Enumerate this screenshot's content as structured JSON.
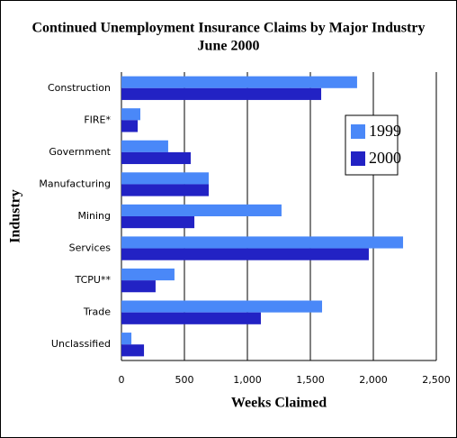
{
  "chart_data": {
    "type": "bar",
    "orientation": "horizontal",
    "title": "Continued Unemployment Insurance Claims by Major Industry",
    "subtitle": "June 2000",
    "x_label": "Weeks Claimed",
    "y_label": "Industry",
    "categories": [
      "Construction",
      "FIRE*",
      "Government",
      "Manufacturing",
      "Mining",
      "Services",
      "TCPU**",
      "Trade",
      "Unclassified"
    ],
    "series": [
      {
        "name": "1999",
        "color": "#4a88f8",
        "values": [
          1871,
          150,
          371,
          693,
          1271,
          2236,
          421,
          1593,
          79
        ]
      },
      {
        "name": "2000",
        "color": "#2222c4",
        "values": [
          1586,
          129,
          550,
          693,
          579,
          1964,
          271,
          1107,
          179
        ]
      }
    ],
    "xlim": [
      0,
      2500
    ],
    "xticks": [
      0,
      500,
      {
        "value": 1000,
        "label": "1,000"
      },
      {
        "value": 1500,
        "label": "1,500"
      },
      {
        "value": 2000,
        "label": "2,000"
      },
      {
        "value": 2500,
        "label": "2,500"
      }
    ],
    "grid": true,
    "legend": "right"
  }
}
